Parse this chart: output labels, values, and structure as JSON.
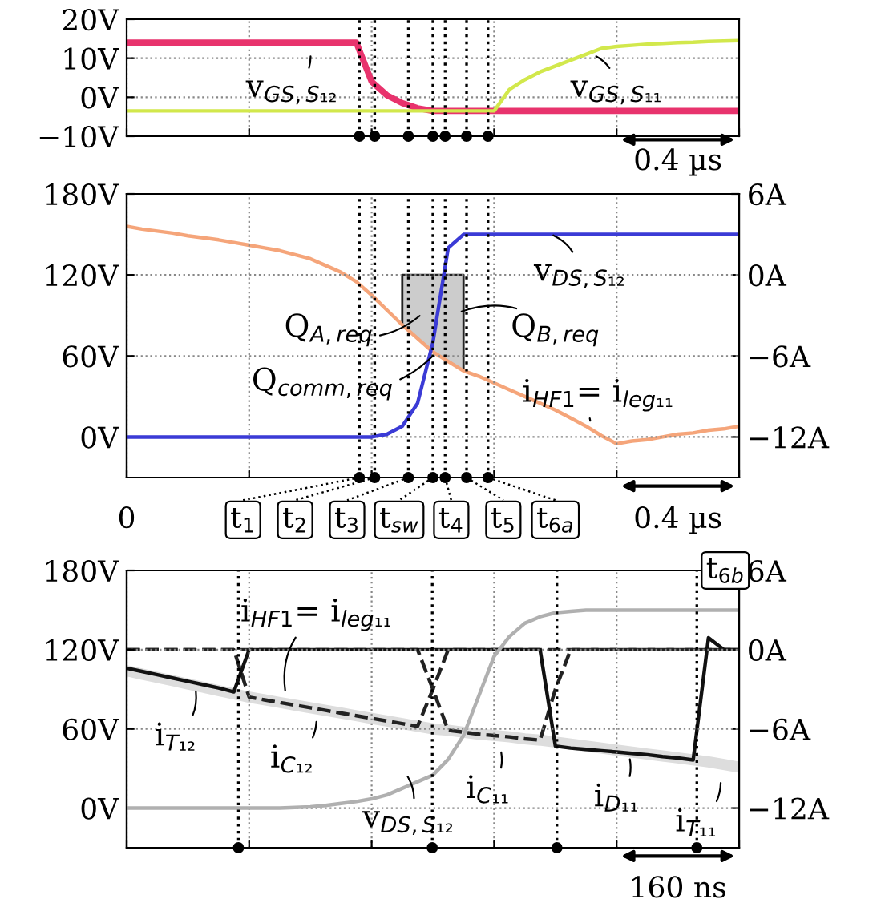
{
  "chart_data": [
    {
      "type": "line",
      "categories": [
        null,
        null,
        null,
        null,
        null,
        null,
        null,
        null,
        null,
        null,
        null,
        null,
        null,
        null,
        null,
        null,
        null,
        null,
        null,
        null,
        null,
        null,
        null,
        null,
        null,
        null,
        null,
        null,
        null,
        null,
        null,
        null,
        null,
        null,
        null,
        null,
        null,
        null,
        null,
        null,
        null
      ],
      "ylim": [
        -10,
        20
      ],
      "yticks": [
        {
          "value": -10,
          "label": "−10V"
        },
        {
          "value": 0,
          "label": "0V"
        },
        {
          "value": 10,
          "label": "10V"
        },
        {
          "value": 20,
          "label": "20V"
        }
      ],
      "grid": true,
      "series": [
        {
          "color": "#e8336d",
          "values": [
            14,
            14,
            14,
            14,
            14,
            14,
            14,
            14,
            14,
            14,
            14,
            14,
            14,
            14,
            14,
            14,
            4,
            0.5,
            -1.5,
            -2.8,
            -3.5,
            -3.5,
            -3.5,
            -3.5,
            -3.5,
            -3.5,
            -3.5,
            -3.5,
            -3.5,
            -3.5,
            -3.5,
            -3.5,
            -3.5,
            -3.5,
            -3.5,
            -3.5,
            -3.5,
            -3.5,
            -3.5,
            -3.5,
            -3.5
          ]
        },
        {
          "color": "#d2e84c",
          "values": [
            -3.5,
            -3.5,
            -3.5,
            -3.5,
            -3.5,
            -3.5,
            -3.5,
            -3.5,
            -3.5,
            -3.5,
            -3.5,
            -3.5,
            -3.5,
            -3.5,
            -3.5,
            -3.5,
            -3.5,
            -3.5,
            -3.5,
            -3.5,
            -3.5,
            -3.5,
            -3.5,
            -3.5,
            -3.5,
            2,
            4.5,
            6.5,
            8,
            9.5,
            11,
            12.5,
            13,
            13.3,
            13.6,
            13.8,
            14,
            14.1,
            14.3,
            14.4,
            14.5
          ]
        }
      ],
      "annotations": [
        "v$_{GS,S₁₂}$",
        "v$_{GS,S₁₁}$",
        "0.4 µs"
      ]
    },
    {
      "type": "line",
      "categories": [
        null,
        null,
        null,
        null,
        null,
        null,
        null,
        null,
        null,
        null,
        null,
        null,
        null,
        null,
        null,
        null,
        null,
        null,
        null,
        null,
        null,
        null,
        null,
        null,
        null,
        null,
        null,
        null,
        null,
        null,
        null,
        null,
        null,
        null,
        null,
        null,
        null,
        null,
        null,
        null,
        null
      ],
      "ylim": [
        -30,
        180
      ],
      "yticks": [
        {
          "value": 0,
          "label": "0V"
        },
        {
          "value": 60,
          "label": "60V"
        },
        {
          "value": 120,
          "label": "120V"
        },
        {
          "value": 180,
          "label": "180V"
        }
      ],
      "y2lim": [
        -15,
        6
      ],
      "y2ticks": [
        {
          "value": -12,
          "label": "−12A"
        },
        {
          "value": -6,
          "label": "−6A"
        },
        {
          "value": 0,
          "label": "0A"
        },
        {
          "value": 6,
          "label": "6A"
        }
      ],
      "grid": true,
      "series": [
        {
          "type": "area",
          "axis": "y2",
          "color": "#cccccc",
          "values": [
            null,
            null,
            null,
            null,
            null,
            null,
            null,
            null,
            null,
            null,
            null,
            null,
            null,
            null,
            null,
            null,
            null,
            null,
            -3.7,
            -4.7,
            -5.7,
            -6.4,
            -7.1,
            null,
            null,
            null,
            null,
            null,
            null,
            null,
            null,
            null,
            null,
            null,
            null,
            null,
            null,
            null,
            null,
            null,
            null
          ]
        },
        {
          "color": "#3b3bd6",
          "values": [
            0,
            0,
            0,
            0,
            0,
            0,
            0,
            0,
            0,
            0,
            0,
            0,
            0,
            0,
            0,
            0,
            0,
            2,
            8,
            25,
            70,
            140,
            150,
            150,
            150,
            150,
            150,
            150,
            150,
            150,
            150,
            150,
            150,
            150,
            150,
            150,
            150,
            150,
            150,
            150,
            150
          ]
        },
        {
          "color": "#f5a57a",
          "axis": "y2",
          "values": [
            3.6,
            3.4,
            3.25,
            3.1,
            2.9,
            2.75,
            2.6,
            2.4,
            2.2,
            2.0,
            1.8,
            1.5,
            1.2,
            0.7,
            0.2,
            -0.5,
            -1.5,
            -2.6,
            -3.7,
            -4.7,
            -5.7,
            -6.4,
            -7.1,
            -7.5,
            -8.0,
            -8.5,
            -9.0,
            -9.5,
            -10,
            -10.6,
            -11.2,
            -11.9,
            -12.5,
            -12.3,
            -12.2,
            -12.0,
            -11.8,
            -11.7,
            -11.5,
            -11.4,
            -11.2
          ]
        }
      ],
      "annotations": [
        "0",
        "v$_{DS,S₁₂}$",
        "Q$_{A,req}$",
        "Q$_{B,req}$",
        "Q$_{comm,req}$",
        "i$_{HF1}$= i$_{leg₁₁}$",
        "0.4 µs",
        "t$_{1}$",
        "t$_{2}$",
        "t$_{3}$",
        "t$_{sw}$",
        "t$_{4}$",
        "t$_{5}$",
        "t$_{6a}$"
      ]
    },
    {
      "type": "line",
      "categories": [
        null,
        null,
        null,
        null,
        null,
        null,
        null,
        null,
        null,
        null,
        null,
        null,
        null,
        null,
        null,
        null,
        null,
        null,
        null,
        null,
        null,
        null,
        null,
        null,
        null,
        null,
        null,
        null,
        null,
        null,
        null,
        null,
        null,
        null,
        null,
        null,
        null,
        null,
        null,
        null,
        null
      ],
      "ylim": [
        -30,
        180
      ],
      "yticks": [
        {
          "value": 0,
          "label": "0V"
        },
        {
          "value": 60,
          "label": "60V"
        },
        {
          "value": 120,
          "label": "120V"
        },
        {
          "value": 180,
          "label": "180V"
        }
      ],
      "y2lim": [
        -15,
        6
      ],
      "y2ticks": [
        {
          "value": -12,
          "label": "−12A"
        },
        {
          "value": -6,
          "label": "−6A"
        },
        {
          "value": 0,
          "label": "0A"
        },
        {
          "value": 6,
          "label": "6A"
        }
      ],
      "grid": true,
      "series": [
        {
          "color": "#dddddd",
          "axis": "y2",
          "values": [
            -1.6,
            -1.85,
            -2.1,
            -2.35,
            -2.6,
            -2.85,
            -3.1,
            -3.35,
            -3.6,
            -3.8,
            -4.0,
            -4.2,
            -4.4,
            -4.6,
            -4.8,
            -5.0,
            -5.2,
            -5.4,
            -5.6,
            -5.8,
            -6.0,
            -6.1,
            -6.25,
            -6.4,
            -6.5,
            -6.6,
            -6.75,
            -6.85,
            -7.0,
            -7.15,
            -7.3,
            -7.45,
            -7.6,
            -7.75,
            -7.9,
            -8.05,
            -8.2,
            -8.35,
            -8.5,
            -8.7,
            -8.9
          ]
        },
        {
          "color": "#b0b0b0",
          "values": [
            0,
            0,
            0,
            0,
            0,
            0,
            0,
            0,
            0,
            0,
            0,
            0.5,
            1,
            2,
            3.5,
            5,
            7,
            10,
            15,
            20,
            25,
            37,
            55,
            85,
            115,
            130,
            140,
            145,
            148,
            149,
            150,
            150,
            150,
            150,
            150,
            150,
            150,
            150,
            150,
            150,
            150
          ]
        },
        {
          "color": "#222222",
          "axis": "y2",
          "line_style": "dashed",
          "values": [
            0,
            0,
            0,
            0,
            0,
            0,
            0,
            0,
            -3.6,
            -3.8,
            -4.0,
            -4.2,
            -4.4,
            -4.6,
            -4.8,
            -5.0,
            -5.2,
            -5.4,
            -5.6,
            -5.8,
            -3,
            0,
            0,
            0,
            0,
            0,
            0,
            0,
            0,
            0,
            0,
            0,
            0,
            0,
            0,
            0,
            0,
            0,
            0,
            0,
            0
          ]
        },
        {
          "color": "#222222",
          "axis": "y2",
          "line_style": "dashed",
          "values": [
            0,
            0,
            0,
            0,
            0,
            0,
            0,
            0,
            0,
            0,
            0,
            0,
            0,
            0,
            0,
            0,
            0,
            0,
            0,
            0,
            -3,
            -6.1,
            -6.25,
            -6.4,
            -6.5,
            -6.6,
            -6.75,
            -6.85,
            -3,
            0,
            0,
            0,
            0,
            0,
            0,
            0,
            0,
            0,
            0,
            0,
            0
          ]
        },
        {
          "color": "#111111",
          "axis": "y2",
          "values": [
            -1.4,
            -1.65,
            -1.9,
            -2.15,
            -2.4,
            -2.65,
            -2.9,
            -3.2,
            0,
            0,
            0,
            0,
            0,
            0,
            0,
            0,
            0,
            0,
            0,
            0,
            0,
            0,
            0,
            0,
            0,
            0,
            0,
            0,
            -7.3,
            -7.45,
            -7.55,
            -7.65,
            -7.75,
            -7.85,
            -7.95,
            -8.1,
            -8.2,
            -8.35,
            0.9,
            0,
            0
          ]
        }
      ],
      "annotations": [
        "i$_{HF1}$= i$_{leg₁₁}$",
        "i$_{T₁₂}$",
        "i$_{C₁₂}$",
        "v$_{DS,S₁₂}$",
        "i$_{C₁₁}$",
        "i$_{D₁₁}$",
        "i$_{T₁₁}$",
        "160 ns",
        "t$_{6b}$"
      ]
    }
  ]
}
